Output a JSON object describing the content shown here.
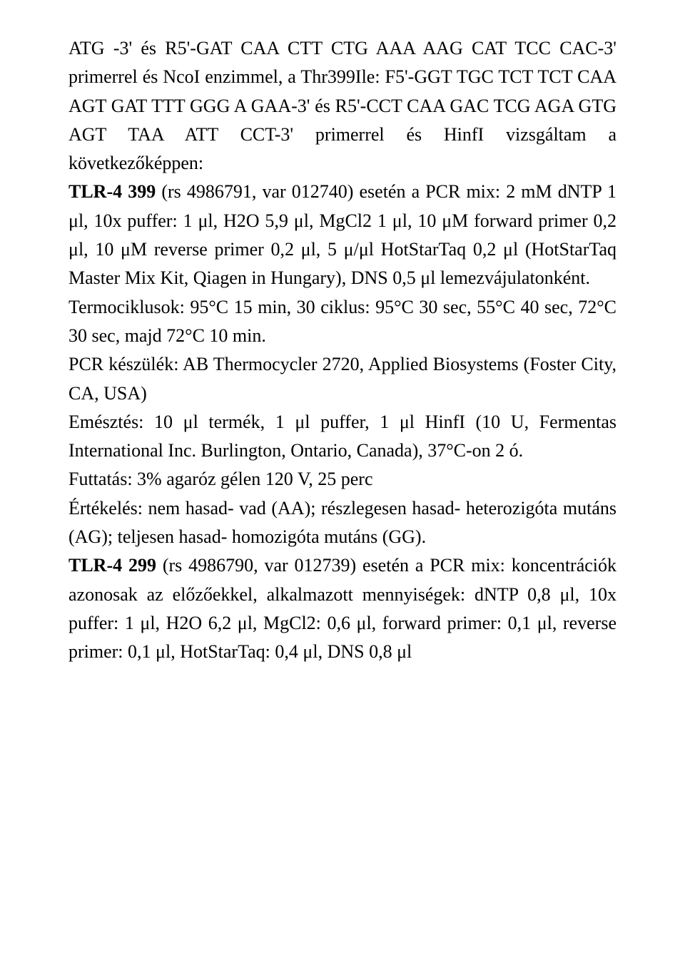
{
  "typography": {
    "font_family": "Times New Roman",
    "font_size_pt": 26,
    "line_height": 1.55,
    "text_color": "#000000",
    "background_color": "#ffffff",
    "alignment": "justify"
  },
  "paragraphs": [
    {
      "runs": [
        {
          "text": "ATG -3' és R5'-GAT CAA CTT CTG AAA AAG CAT TCC CAC-3' primerrel és NcoI enzimmel, a Thr399Ile: F5'-GGT TGC TCT TCT CAA AGT GAT TTT GGG A GAA-3' és R5'-CCT CAA GAC TCG AGA GTG AGT TAA ATT CCT-3' primerrel és HinfI vizsgáltam a következőképpen:",
          "bold": false
        }
      ]
    },
    {
      "runs": [
        {
          "text": "TLR-4 399 ",
          "bold": true
        },
        {
          "text": "(rs 4986791, var 012740)  esetén a PCR mix: 2 mM dNTP 1 μl, 10x puffer: 1 μl, H2O 5,9 μl, MgCl2 1 μl, 10 μM forward primer 0,2 μl, 10 μM reverse primer 0,2 μl, 5 μ/μl HotStarTaq 0,2 μl (HotStarTaq Master Mix Kit, Qiagen in Hungary), DNS 0,5 μl lemezvájulatonként.",
          "bold": false
        }
      ]
    },
    {
      "runs": [
        {
          "text": "Termociklusok: 95°C 15 min, 30 ciklus: 95°C 30 sec, 55°C 40 sec, 72°C 30 sec, majd 72°C 10 min.",
          "bold": false
        }
      ]
    },
    {
      "runs": [
        {
          "text": "PCR készülék: AB Thermocycler 2720, Applied Biosystems (Foster City, CA, USA)",
          "bold": false
        }
      ]
    },
    {
      "runs": [
        {
          "text": "Emésztés: 10 μl termék, 1 μl puffer, 1 μl HinfI (10 U, Fermentas International Inc. Burlington, Ontario, Canada), 37°C-on 2 ó.",
          "bold": false
        }
      ]
    },
    {
      "runs": [
        {
          "text": "Futtatás: 3% agaróz gélen 120 V, 25 perc",
          "bold": false
        }
      ]
    },
    {
      "runs": [
        {
          "text": "Értékelés: nem hasad- vad (AA); részlegesen hasad- heterozigóta mutáns (AG); teljesen hasad- homozigóta mutáns (GG).",
          "bold": false
        }
      ]
    },
    {
      "runs": [
        {
          "text": "TLR-4 299 ",
          "bold": true
        },
        {
          "text": "(rs 4986790, var 012739) esetén a PCR mix: koncentrációk azonosak az előzőekkel, alkalmazott mennyiségek: dNTP 0,8 μl, 10x puffer: 1 μl, H2O 6,2 μl, MgCl2: 0,6 μl, forward primer: 0,1 μl, reverse primer: 0,1 μl, HotStarTaq: 0,4 μl, DNS 0,8 μl",
          "bold": false
        }
      ]
    }
  ]
}
